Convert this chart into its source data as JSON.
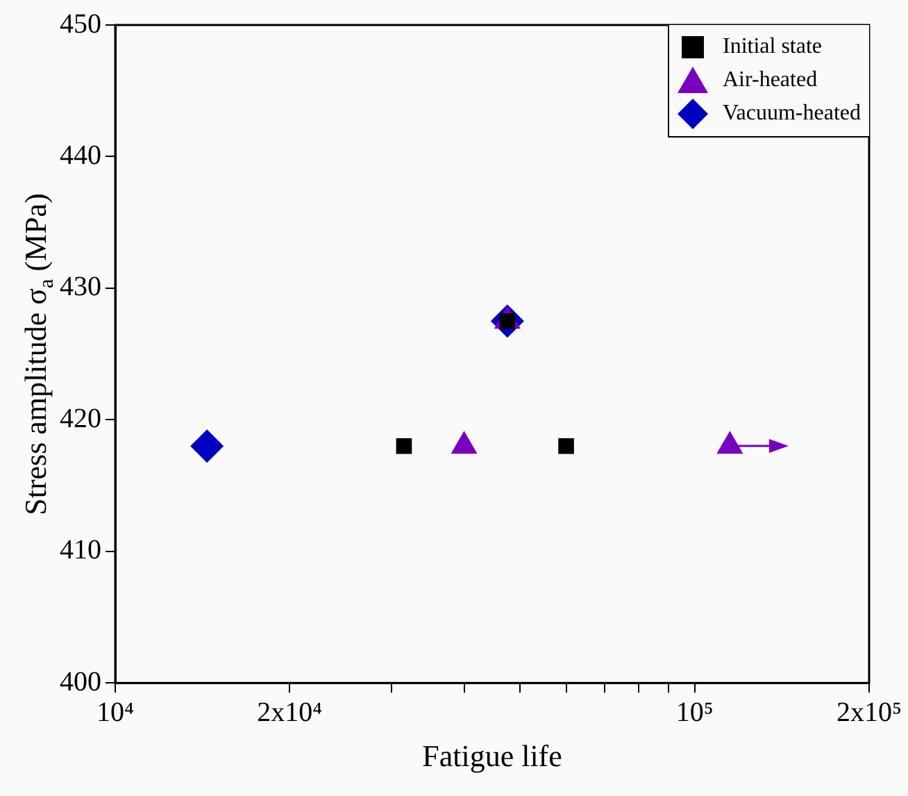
{
  "chart_data": {
    "type": "scatter",
    "xlabel": "Fatigue life",
    "ylabel": "Stress amplitude σ$_{a}$ (MPa)",
    "log": "x",
    "grid": false,
    "legend": "top right",
    "xlim": [
      10000,
      200000
    ],
    "xticks": [
      {
        "value": 10000,
        "label": "10⁴"
      },
      {
        "value": 20000,
        "label": "2x10⁴"
      },
      {
        "value": 30000,
        "label": null
      },
      {
        "value": 40000,
        "label": null
      },
      {
        "value": 50000,
        "label": null
      },
      {
        "value": 60000,
        "label": null
      },
      {
        "value": 70000,
        "label": null
      },
      {
        "value": 80000,
        "label": null
      },
      {
        "value": 90000,
        "label": null
      },
      {
        "value": 100000,
        "label": "10⁵"
      },
      {
        "value": 200000,
        "label": "2x10⁵"
      }
    ],
    "ylim": [
      400,
      450
    ],
    "yticks": [
      400,
      410,
      420,
      430,
      440,
      450
    ],
    "series": [
      {
        "name": "Initial state",
        "color": "#000000",
        "marker": "square",
        "x": [
          31500,
          60000,
          47500
        ],
        "values": [
          418,
          418,
          427.5
        ]
      },
      {
        "name": "Air-heated",
        "color": "#7a00bf",
        "marker": "triangle",
        "x": [
          40000,
          115000,
          47500
        ],
        "values": [
          418,
          418,
          427.5
        ]
      },
      {
        "name": "Vacuum-heated",
        "color": "#0000c0",
        "marker": "diamond",
        "x": [
          14400,
          47500
        ],
        "values": [
          418,
          427.5
        ]
      }
    ]
  }
}
